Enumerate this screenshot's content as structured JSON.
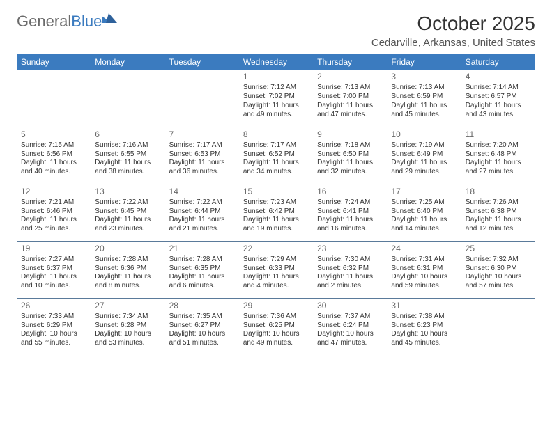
{
  "logo": {
    "word1": "General",
    "word2": "Blue"
  },
  "title": "October 2025",
  "subtitle": "Cedarville, Arkansas, United States",
  "colors": {
    "headerBg": "#3b7bbf",
    "headerText": "#ffffff",
    "rowBorder": "#5a7a9a",
    "text": "#333333",
    "daynum": "#666666",
    "logoGray": "#6b6b6b",
    "logoBlue": "#3b7bbf",
    "background": "#ffffff"
  },
  "weekdays": [
    "Sunday",
    "Monday",
    "Tuesday",
    "Wednesday",
    "Thursday",
    "Friday",
    "Saturday"
  ],
  "weeks": [
    [
      null,
      null,
      null,
      {
        "d": "1",
        "sr": "Sunrise: 7:12 AM",
        "ss": "Sunset: 7:02 PM",
        "dl1": "Daylight: 11 hours",
        "dl2": "and 49 minutes."
      },
      {
        "d": "2",
        "sr": "Sunrise: 7:13 AM",
        "ss": "Sunset: 7:00 PM",
        "dl1": "Daylight: 11 hours",
        "dl2": "and 47 minutes."
      },
      {
        "d": "3",
        "sr": "Sunrise: 7:13 AM",
        "ss": "Sunset: 6:59 PM",
        "dl1": "Daylight: 11 hours",
        "dl2": "and 45 minutes."
      },
      {
        "d": "4",
        "sr": "Sunrise: 7:14 AM",
        "ss": "Sunset: 6:57 PM",
        "dl1": "Daylight: 11 hours",
        "dl2": "and 43 minutes."
      }
    ],
    [
      {
        "d": "5",
        "sr": "Sunrise: 7:15 AM",
        "ss": "Sunset: 6:56 PM",
        "dl1": "Daylight: 11 hours",
        "dl2": "and 40 minutes."
      },
      {
        "d": "6",
        "sr": "Sunrise: 7:16 AM",
        "ss": "Sunset: 6:55 PM",
        "dl1": "Daylight: 11 hours",
        "dl2": "and 38 minutes."
      },
      {
        "d": "7",
        "sr": "Sunrise: 7:17 AM",
        "ss": "Sunset: 6:53 PM",
        "dl1": "Daylight: 11 hours",
        "dl2": "and 36 minutes."
      },
      {
        "d": "8",
        "sr": "Sunrise: 7:17 AM",
        "ss": "Sunset: 6:52 PM",
        "dl1": "Daylight: 11 hours",
        "dl2": "and 34 minutes."
      },
      {
        "d": "9",
        "sr": "Sunrise: 7:18 AM",
        "ss": "Sunset: 6:50 PM",
        "dl1": "Daylight: 11 hours",
        "dl2": "and 32 minutes."
      },
      {
        "d": "10",
        "sr": "Sunrise: 7:19 AM",
        "ss": "Sunset: 6:49 PM",
        "dl1": "Daylight: 11 hours",
        "dl2": "and 29 minutes."
      },
      {
        "d": "11",
        "sr": "Sunrise: 7:20 AM",
        "ss": "Sunset: 6:48 PM",
        "dl1": "Daylight: 11 hours",
        "dl2": "and 27 minutes."
      }
    ],
    [
      {
        "d": "12",
        "sr": "Sunrise: 7:21 AM",
        "ss": "Sunset: 6:46 PM",
        "dl1": "Daylight: 11 hours",
        "dl2": "and 25 minutes."
      },
      {
        "d": "13",
        "sr": "Sunrise: 7:22 AM",
        "ss": "Sunset: 6:45 PM",
        "dl1": "Daylight: 11 hours",
        "dl2": "and 23 minutes."
      },
      {
        "d": "14",
        "sr": "Sunrise: 7:22 AM",
        "ss": "Sunset: 6:44 PM",
        "dl1": "Daylight: 11 hours",
        "dl2": "and 21 minutes."
      },
      {
        "d": "15",
        "sr": "Sunrise: 7:23 AM",
        "ss": "Sunset: 6:42 PM",
        "dl1": "Daylight: 11 hours",
        "dl2": "and 19 minutes."
      },
      {
        "d": "16",
        "sr": "Sunrise: 7:24 AM",
        "ss": "Sunset: 6:41 PM",
        "dl1": "Daylight: 11 hours",
        "dl2": "and 16 minutes."
      },
      {
        "d": "17",
        "sr": "Sunrise: 7:25 AM",
        "ss": "Sunset: 6:40 PM",
        "dl1": "Daylight: 11 hours",
        "dl2": "and 14 minutes."
      },
      {
        "d": "18",
        "sr": "Sunrise: 7:26 AM",
        "ss": "Sunset: 6:38 PM",
        "dl1": "Daylight: 11 hours",
        "dl2": "and 12 minutes."
      }
    ],
    [
      {
        "d": "19",
        "sr": "Sunrise: 7:27 AM",
        "ss": "Sunset: 6:37 PM",
        "dl1": "Daylight: 11 hours",
        "dl2": "and 10 minutes."
      },
      {
        "d": "20",
        "sr": "Sunrise: 7:28 AM",
        "ss": "Sunset: 6:36 PM",
        "dl1": "Daylight: 11 hours",
        "dl2": "and 8 minutes."
      },
      {
        "d": "21",
        "sr": "Sunrise: 7:28 AM",
        "ss": "Sunset: 6:35 PM",
        "dl1": "Daylight: 11 hours",
        "dl2": "and 6 minutes."
      },
      {
        "d": "22",
        "sr": "Sunrise: 7:29 AM",
        "ss": "Sunset: 6:33 PM",
        "dl1": "Daylight: 11 hours",
        "dl2": "and 4 minutes."
      },
      {
        "d": "23",
        "sr": "Sunrise: 7:30 AM",
        "ss": "Sunset: 6:32 PM",
        "dl1": "Daylight: 11 hours",
        "dl2": "and 2 minutes."
      },
      {
        "d": "24",
        "sr": "Sunrise: 7:31 AM",
        "ss": "Sunset: 6:31 PM",
        "dl1": "Daylight: 10 hours",
        "dl2": "and 59 minutes."
      },
      {
        "d": "25",
        "sr": "Sunrise: 7:32 AM",
        "ss": "Sunset: 6:30 PM",
        "dl1": "Daylight: 10 hours",
        "dl2": "and 57 minutes."
      }
    ],
    [
      {
        "d": "26",
        "sr": "Sunrise: 7:33 AM",
        "ss": "Sunset: 6:29 PM",
        "dl1": "Daylight: 10 hours",
        "dl2": "and 55 minutes."
      },
      {
        "d": "27",
        "sr": "Sunrise: 7:34 AM",
        "ss": "Sunset: 6:28 PM",
        "dl1": "Daylight: 10 hours",
        "dl2": "and 53 minutes."
      },
      {
        "d": "28",
        "sr": "Sunrise: 7:35 AM",
        "ss": "Sunset: 6:27 PM",
        "dl1": "Daylight: 10 hours",
        "dl2": "and 51 minutes."
      },
      {
        "d": "29",
        "sr": "Sunrise: 7:36 AM",
        "ss": "Sunset: 6:25 PM",
        "dl1": "Daylight: 10 hours",
        "dl2": "and 49 minutes."
      },
      {
        "d": "30",
        "sr": "Sunrise: 7:37 AM",
        "ss": "Sunset: 6:24 PM",
        "dl1": "Daylight: 10 hours",
        "dl2": "and 47 minutes."
      },
      {
        "d": "31",
        "sr": "Sunrise: 7:38 AM",
        "ss": "Sunset: 6:23 PM",
        "dl1": "Daylight: 10 hours",
        "dl2": "and 45 minutes."
      },
      null
    ]
  ]
}
